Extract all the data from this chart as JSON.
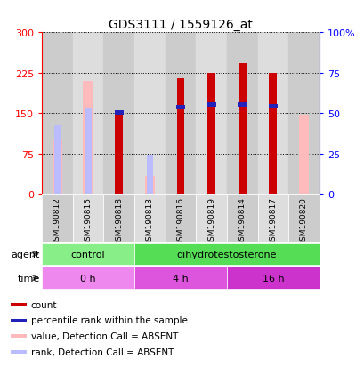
{
  "title": "GDS3111 / 1559126_at",
  "samples": [
    "GSM190812",
    "GSM190815",
    "GSM190818",
    "GSM190813",
    "GSM190816",
    "GSM190819",
    "GSM190814",
    "GSM190817",
    "GSM190820"
  ],
  "count_values": [
    null,
    null,
    150,
    null,
    215,
    225,
    242,
    225,
    null
  ],
  "rank_values": [
    null,
    null,
    151,
    null,
    161,
    166,
    166,
    163,
    null
  ],
  "absent_value_bars": [
    100,
    210,
    null,
    33,
    null,
    null,
    null,
    null,
    148
  ],
  "absent_rank_bars": [
    128,
    161,
    null,
    73,
    null,
    null,
    null,
    null,
    null
  ],
  "left_yticks": [
    0,
    75,
    150,
    225,
    300
  ],
  "right_ylabels": [
    "0",
    "25",
    "50",
    "75",
    "100%"
  ],
  "ylim": [
    0,
    300
  ],
  "bar_width": 0.18,
  "count_color": "#cc0000",
  "rank_color": "#2222bb",
  "absent_value_color": "#ffbbbb",
  "absent_rank_color": "#bbbbff",
  "col_bg_even": "#cccccc",
  "col_bg_odd": "#dddddd",
  "agent_groups": [
    {
      "label": "control",
      "start": 0,
      "end": 3,
      "color": "#88ee88"
    },
    {
      "label": "dihydrotestosterone",
      "start": 3,
      "end": 9,
      "color": "#55dd55"
    }
  ],
  "time_groups": [
    {
      "label": "0 h",
      "start": 0,
      "end": 3,
      "color": "#ee88ee"
    },
    {
      "label": "4 h",
      "start": 3,
      "end": 6,
      "color": "#dd55dd"
    },
    {
      "label": "16 h",
      "start": 6,
      "end": 9,
      "color": "#cc33cc"
    }
  ],
  "legend_items": [
    {
      "label": "count",
      "color": "#cc0000"
    },
    {
      "label": "percentile rank within the sample",
      "color": "#2222bb"
    },
    {
      "label": "value, Detection Call = ABSENT",
      "color": "#ffbbbb"
    },
    {
      "label": "rank, Detection Call = ABSENT",
      "color": "#bbbbff"
    }
  ],
  "agent_label": "agent",
  "time_label": "time"
}
